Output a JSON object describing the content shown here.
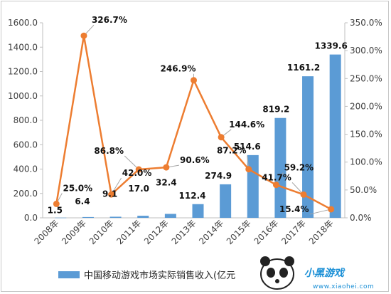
{
  "chart_data": {
    "type": "bar+line",
    "categories": [
      "2008年",
      "2009年",
      "2010年",
      "2011年",
      "2012年",
      "2013年",
      "2014年",
      "2015年",
      "2016年",
      "2017年",
      "2018年"
    ],
    "series": [
      {
        "name": "中国移动游戏市场实际销售收入(亿元",
        "type": "bar",
        "axis": "left",
        "values": [
          1.5,
          6.4,
          9.1,
          17.0,
          32.4,
          112.4,
          274.9,
          514.6,
          819.2,
          1161.2,
          1339.6
        ],
        "labels": [
          "1.5",
          "6.4",
          "9.1",
          "17.0",
          "32.4",
          "112.4",
          "274.9",
          "514.6",
          "819.2",
          "1161.2",
          "1339.6"
        ]
      },
      {
        "type": "line",
        "axis": "right",
        "values": [
          25.0,
          326.7,
          42.0,
          86.8,
          90.6,
          246.9,
          144.6,
          87.2,
          59.2,
          41.7,
          15.4
        ],
        "labels": [
          "25.0%",
          "326.7%",
          "42.0%",
          "86.8%",
          "90.6%",
          "246.9%",
          "144.6%",
          "87.2%",
          "59.2%",
          "41.7%",
          "15.4%"
        ]
      }
    ],
    "y_left": {
      "min": 0,
      "max": 1600,
      "ticks": [
        "0.0",
        "200.0",
        "400.0",
        "600.0",
        "800.0",
        "1000.0",
        "1200.0",
        "1400.0",
        "1600.0"
      ]
    },
    "y_right": {
      "min": 0,
      "max": 350,
      "ticks": [
        "0.0%",
        "50.0%",
        "100.0%",
        "150.0%",
        "200.0%",
        "250.0%",
        "300.0%",
        "350.0%"
      ]
    },
    "grid": false,
    "legend_position": "bottom",
    "colors": {
      "bar": "#5b9bd5",
      "line": "#ed7d31",
      "axis": "#bfbfbf",
      "leader": "#a6a6a6"
    }
  },
  "watermark": {
    "logo_text": "小黑游戏",
    "url": "www.xiaohei.com"
  }
}
